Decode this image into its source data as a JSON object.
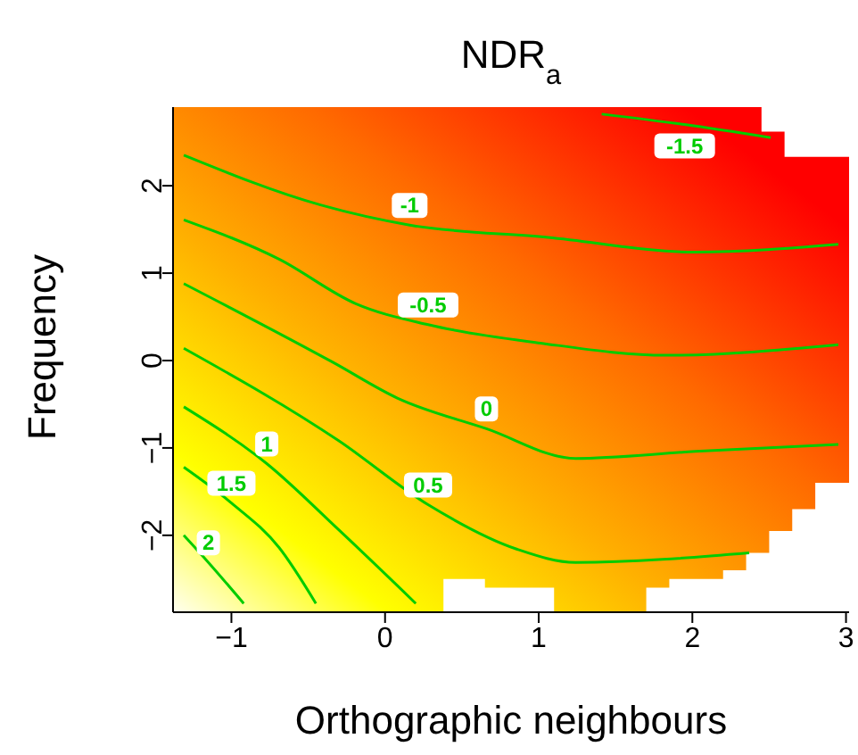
{
  "chart_data": {
    "type": "line",
    "title": "NDR$_{a}$",
    "xlabel": "Orthographic neighbours",
    "ylabel": "Frequency",
    "xlim": [
      -1.38,
      3.02
    ],
    "ylim": [
      -2.88,
      2.9
    ],
    "xticks": [
      {
        "value": -1,
        "label": "−1"
      },
      0,
      1,
      2,
      3
    ],
    "yticks": [
      {
        "value": -2,
        "label": "−2"
      },
      {
        "value": -1,
        "label": "−1"
      },
      0,
      1,
      2
    ],
    "marker": "none",
    "grid": false,
    "series": [
      {
        "name": "-1.5",
        "color": "#00cc00",
        "x": [
          1.41,
          1.95,
          2.51
        ],
        "values": [
          2.82,
          2.7,
          2.55
        ]
      },
      {
        "name": "-1",
        "color": "#00cc00",
        "x": [
          -1.31,
          -0.42,
          0.16,
          1.06,
          2.02,
          2.95
        ],
        "values": [
          2.35,
          1.78,
          1.55,
          1.41,
          1.24,
          1.33
        ]
      },
      {
        "name": "-0.5",
        "color": "#00cc00",
        "x": [
          -1.31,
          -0.69,
          -0.19,
          0.28,
          1.01,
          1.83,
          2.95
        ],
        "values": [
          1.61,
          1.16,
          0.65,
          0.41,
          0.2,
          0.06,
          0.18
        ]
      },
      {
        "name": "0",
        "color": "#00cc00",
        "x": [
          -1.31,
          -0.34,
          0.08,
          0.66,
          1.24,
          2.02,
          2.95
        ],
        "values": [
          0.88,
          -0.02,
          -0.43,
          -0.78,
          -1.12,
          -1.04,
          -0.96
        ]
      },
      {
        "name": "0.5",
        "color": "#00cc00",
        "x": [
          -1.31,
          -0.3,
          0.28,
          0.86,
          1.24,
          2.37
        ],
        "values": [
          0.14,
          -0.92,
          -1.65,
          -2.16,
          -2.31,
          -2.2
        ]
      },
      {
        "name": "1",
        "color": "#00cc00",
        "x": [
          -1.31,
          -0.77,
          -0.3,
          0.2
        ],
        "values": [
          -0.53,
          -1.18,
          -1.94,
          -2.78
        ]
      },
      {
        "name": "1.5",
        "color": "#00cc00",
        "x": [
          -1.31,
          -1.0,
          -0.69,
          -0.45
        ],
        "values": [
          -1.22,
          -1.63,
          -2.14,
          -2.78
        ]
      },
      {
        "name": "2",
        "color": "#00cc00",
        "x": [
          -1.31,
          -1.15,
          -0.92
        ],
        "values": [
          -2.0,
          -2.31,
          -2.78
        ]
      }
    ]
  }
}
